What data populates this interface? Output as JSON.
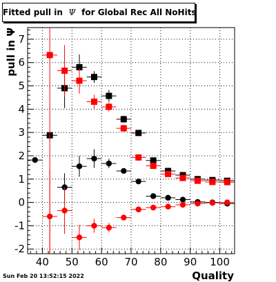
{
  "title": {
    "prefix": "Fitted pull in",
    "symbol": "Ψ",
    "suffix": "for Global Rec All NoHits"
  },
  "timestamp": "Sun Feb 20 13:52:15 2022",
  "chart_data": {
    "type": "scatter",
    "xlabel": "Quality",
    "ylabel": "pull in Ψ",
    "xlim": [
      35,
      105
    ],
    "ylim": [
      -2.2,
      7.5
    ],
    "grid": true,
    "x_ticks": [
      40,
      50,
      60,
      70,
      80,
      90,
      100
    ],
    "y_ticks": [
      -2,
      -1,
      0,
      1,
      2,
      3,
      4,
      5,
      6,
      7
    ],
    "x_halfwidth": 2.5,
    "series": [
      {
        "style": "filled-square",
        "color": "#000000",
        "points": [
          {
            "x": 42.5,
            "y": 2.88,
            "err": 0.15
          },
          {
            "x": 47.5,
            "y": 4.9,
            "err": 0.85
          },
          {
            "x": 52.5,
            "y": 5.8,
            "err": 0.55
          },
          {
            "x": 57.5,
            "y": 5.38,
            "err": 0.25
          },
          {
            "x": 62.5,
            "y": 4.57,
            "err": 0.25
          },
          {
            "x": 67.5,
            "y": 3.57,
            "err": 0.15
          },
          {
            "x": 72.5,
            "y": 2.98,
            "err": 0.1
          },
          {
            "x": 77.5,
            "y": 1.8,
            "err": 0.08
          },
          {
            "x": 82.5,
            "y": 1.35,
            "err": 0.06
          },
          {
            "x": 87.5,
            "y": 1.17,
            "err": 0.05
          },
          {
            "x": 92.5,
            "y": 1.0,
            "err": 0.05
          },
          {
            "x": 97.5,
            "y": 0.96,
            "err": 0.05
          },
          {
            "x": 102.5,
            "y": 0.93,
            "err": 0.05
          }
        ]
      },
      {
        "style": "filled-square",
        "color": "#ff0000",
        "points": [
          {
            "x": 42.5,
            "y": 6.32,
            "err": 8.5
          },
          {
            "x": 47.5,
            "y": 5.65,
            "err": 1.1
          },
          {
            "x": 52.5,
            "y": 5.22,
            "err": 0.55
          },
          {
            "x": 57.5,
            "y": 4.32,
            "err": 0.3
          },
          {
            "x": 62.5,
            "y": 4.1,
            "err": 0.2
          },
          {
            "x": 67.5,
            "y": 3.18,
            "err": 0.15
          },
          {
            "x": 72.5,
            "y": 1.93,
            "err": 0.1
          },
          {
            "x": 77.5,
            "y": 1.57,
            "err": 0.08
          },
          {
            "x": 82.5,
            "y": 1.22,
            "err": 0.06
          },
          {
            "x": 87.5,
            "y": 1.05,
            "err": 0.05
          },
          {
            "x": 92.5,
            "y": 0.93,
            "err": 0.05
          },
          {
            "x": 97.5,
            "y": 0.88,
            "err": 0.05
          },
          {
            "x": 102.5,
            "y": 0.87,
            "err": 0.05
          }
        ]
      },
      {
        "style": "filled-circle",
        "color": "#000000",
        "points": [
          {
            "x": 37.5,
            "y": 1.82,
            "err": 0.1
          },
          {
            "x": 47.5,
            "y": 0.65,
            "err": 0.6
          },
          {
            "x": 52.5,
            "y": 1.55,
            "err": 0.45
          },
          {
            "x": 57.5,
            "y": 1.88,
            "err": 0.4
          },
          {
            "x": 62.5,
            "y": 1.67,
            "err": 0.2
          },
          {
            "x": 67.5,
            "y": 1.35,
            "err": 0.1
          },
          {
            "x": 72.5,
            "y": 0.9,
            "err": 0.08
          },
          {
            "x": 77.5,
            "y": 0.27,
            "err": 0.06
          },
          {
            "x": 82.5,
            "y": 0.2,
            "err": 0.05
          },
          {
            "x": 87.5,
            "y": 0.12,
            "err": 0.05
          },
          {
            "x": 92.5,
            "y": 0.02,
            "err": 0.05
          },
          {
            "x": 97.5,
            "y": 0.0,
            "err": 0.05
          },
          {
            "x": 102.5,
            "y": -0.05,
            "err": 0.05
          }
        ]
      },
      {
        "style": "filled-circle",
        "color": "#ff0000",
        "points": [
          {
            "x": 42.5,
            "y": -0.6,
            "err": 2.0
          },
          {
            "x": 47.5,
            "y": -0.35,
            "err": 1.0
          },
          {
            "x": 52.5,
            "y": -1.5,
            "err": 0.55
          },
          {
            "x": 57.5,
            "y": -1.0,
            "err": 0.3
          },
          {
            "x": 62.5,
            "y": -1.08,
            "err": 0.2
          },
          {
            "x": 67.5,
            "y": -0.65,
            "err": 0.12
          },
          {
            "x": 72.5,
            "y": -0.3,
            "err": 0.08
          },
          {
            "x": 77.5,
            "y": -0.22,
            "err": 0.06
          },
          {
            "x": 82.5,
            "y": -0.18,
            "err": 0.05
          },
          {
            "x": 87.5,
            "y": -0.1,
            "err": 0.05
          },
          {
            "x": 92.5,
            "y": -0.05,
            "err": 0.05
          },
          {
            "x": 97.5,
            "y": -0.02,
            "err": 0.05
          },
          {
            "x": 102.5,
            "y": 0.0,
            "err": 0.05
          }
        ]
      }
    ]
  }
}
